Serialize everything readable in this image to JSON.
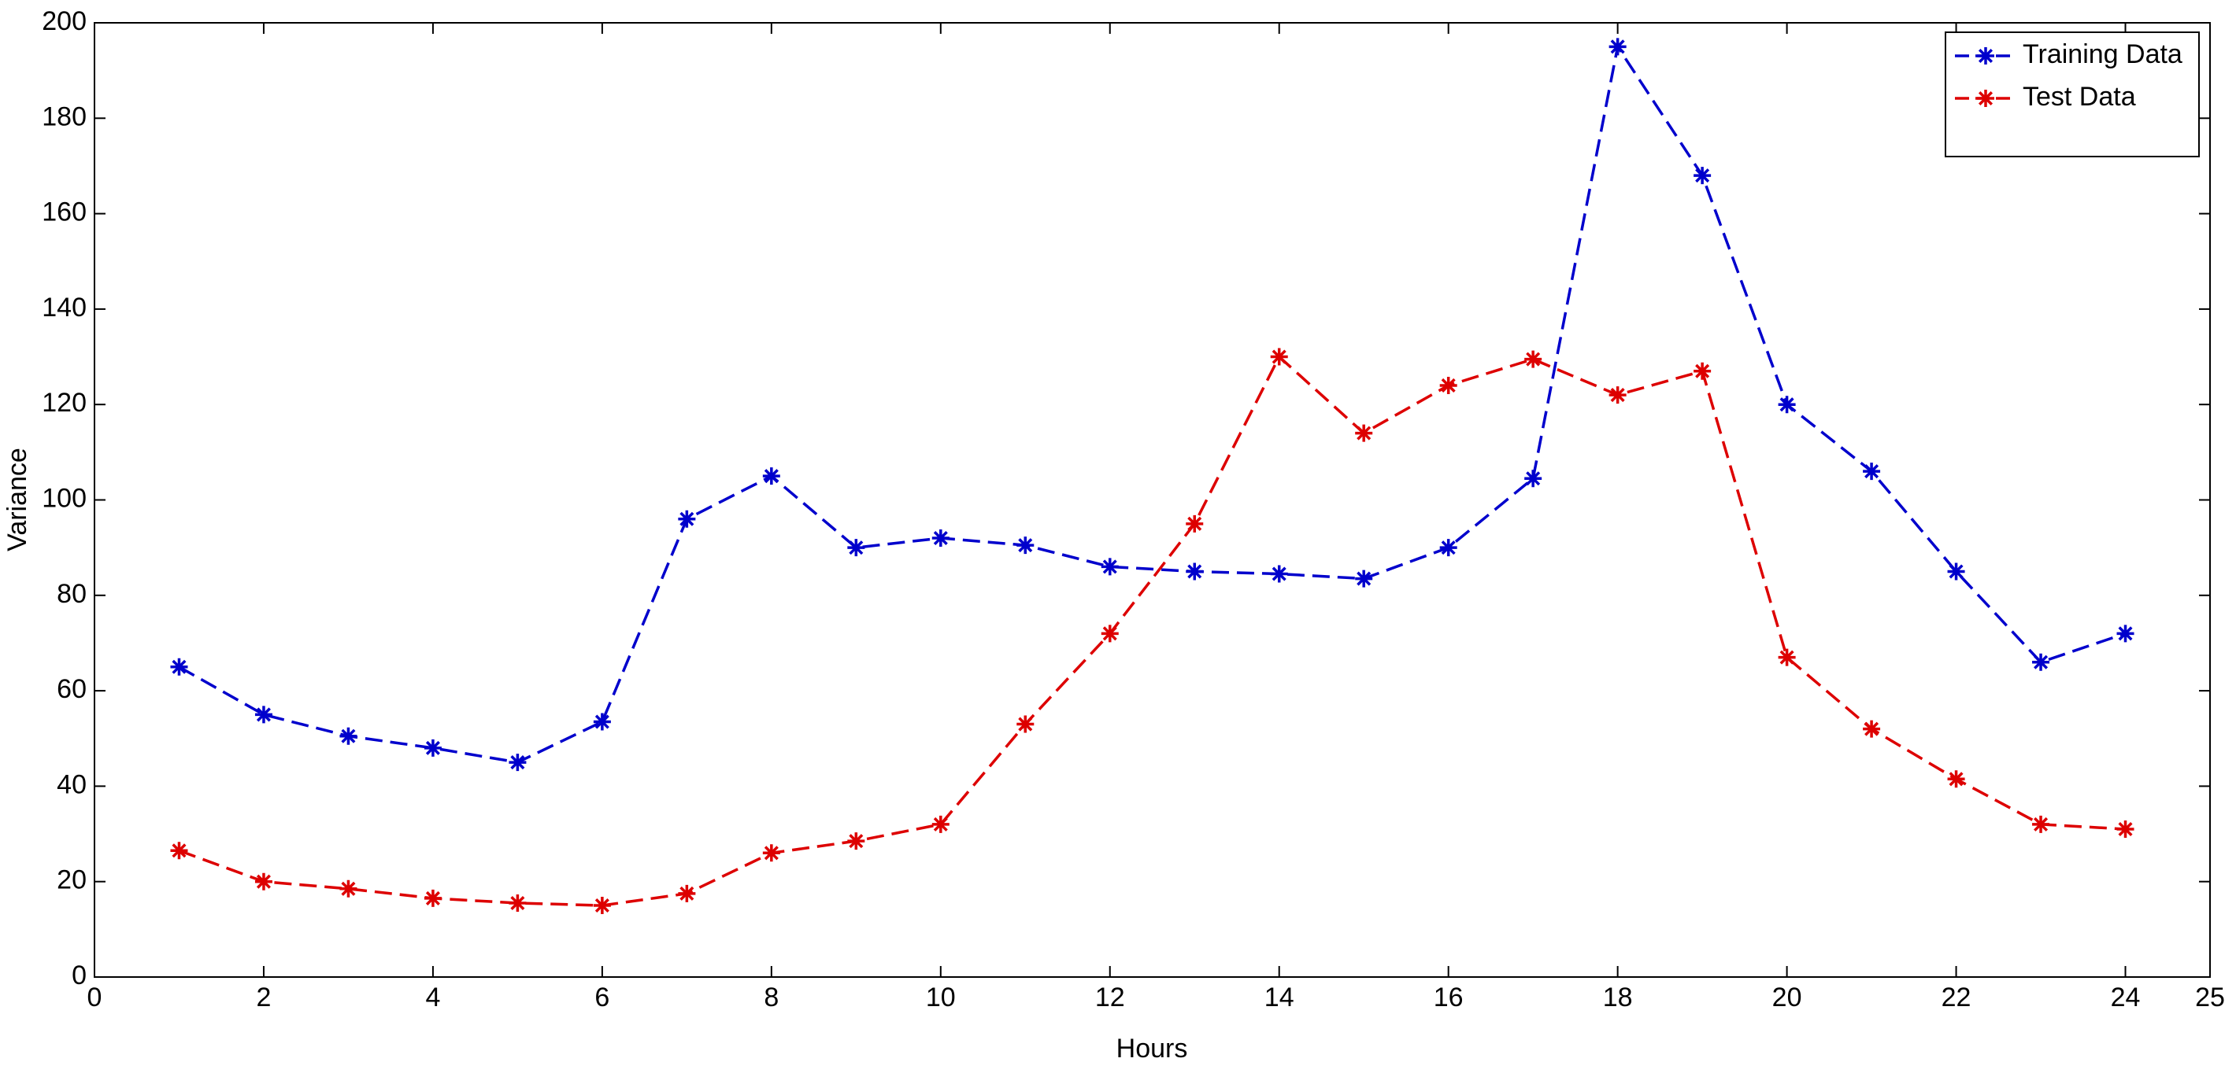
{
  "chart_data": {
    "type": "line",
    "xlabel": "Hours",
    "ylabel": "Variance",
    "x": [
      1,
      2,
      3,
      4,
      5,
      6,
      7,
      8,
      9,
      10,
      11,
      12,
      13,
      14,
      15,
      16,
      17,
      18,
      19,
      20,
      21,
      22,
      23,
      24
    ],
    "series": [
      {
        "name": "Training Data",
        "color": "#0000cc",
        "values": [
          65,
          55,
          50.5,
          48,
          45,
          53.5,
          96,
          105,
          90,
          92,
          90.5,
          86,
          85,
          84.5,
          83.5,
          90,
          104.5,
          195,
          168,
          120,
          106,
          85,
          66,
          72
        ]
      },
      {
        "name": "Test Data",
        "color": "#dd0000",
        "values": [
          26.5,
          20,
          18.5,
          16.5,
          15.5,
          15,
          17.5,
          26,
          28.5,
          32,
          53,
          72,
          95,
          130,
          114,
          124,
          129.5,
          122,
          127,
          67,
          52,
          41.5,
          32,
          31
        ]
      }
    ],
    "xlim": [
      0,
      25
    ],
    "xticks": [
      0,
      2,
      4,
      6,
      8,
      10,
      12,
      14,
      16,
      18,
      20,
      22,
      24,
      25
    ],
    "ylim": [
      0,
      200
    ],
    "yticks": [
      0,
      20,
      40,
      60,
      80,
      100,
      120,
      140,
      160,
      180,
      200
    ],
    "grid": false,
    "legend": "top-right"
  }
}
